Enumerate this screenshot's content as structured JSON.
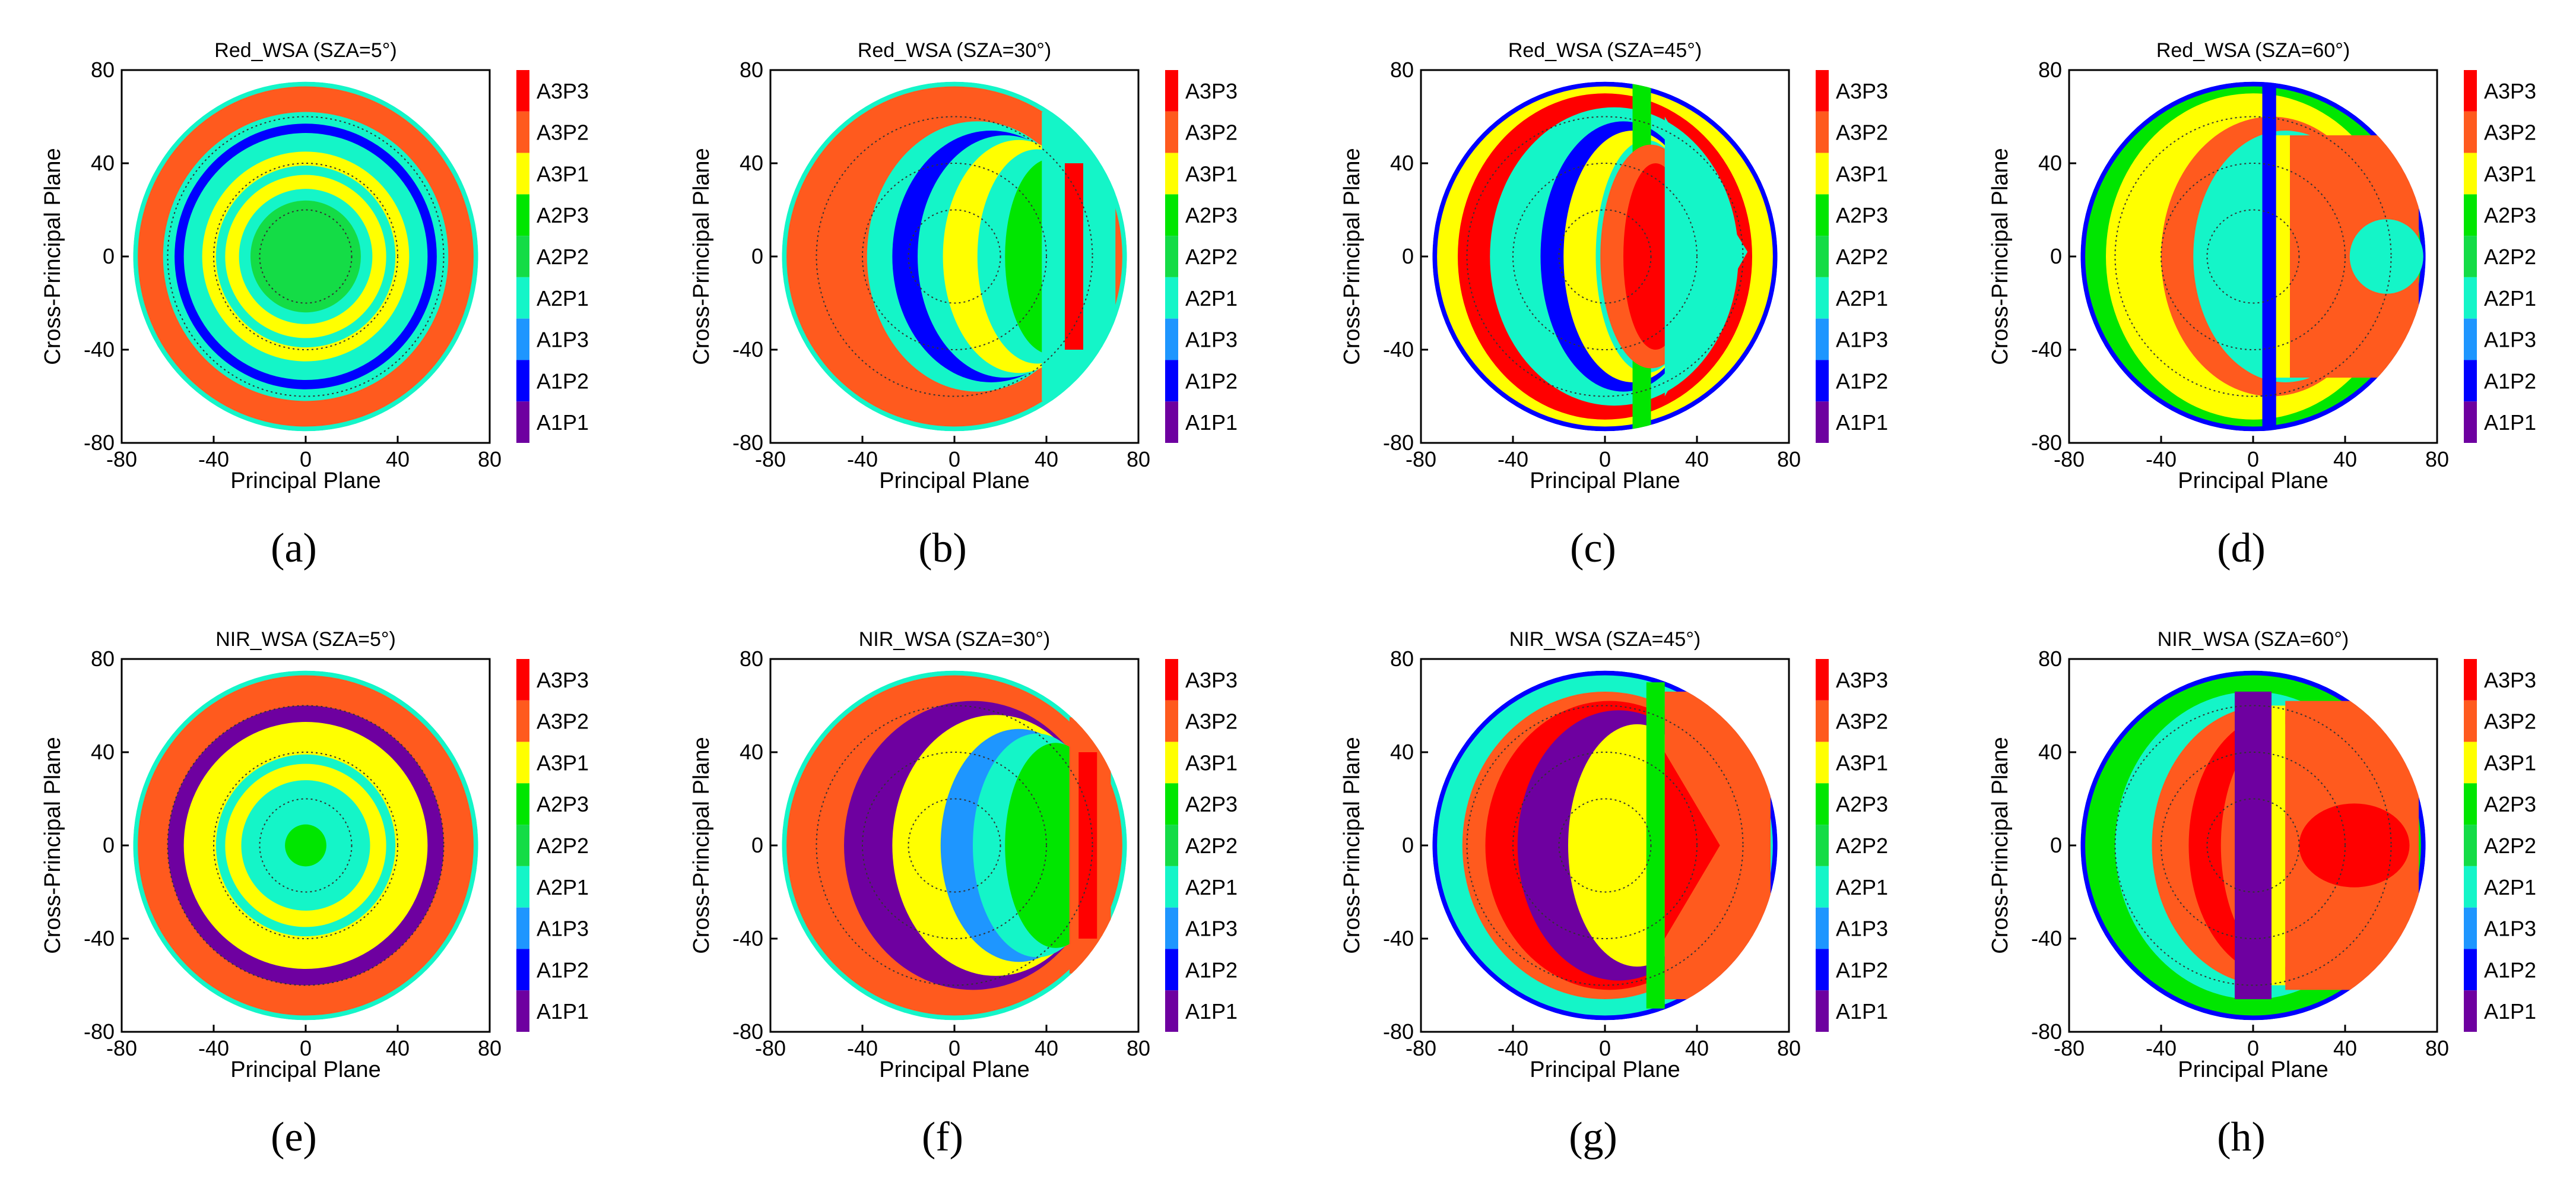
{
  "figure": {
    "panels": [
      {
        "id": "a",
        "title": "Red_WSA (SZA=5°)",
        "caption_letter": "a",
        "band": "Red",
        "sza": 5
      },
      {
        "id": "b",
        "title": "Red_WSA (SZA=30°)",
        "caption_letter": "b",
        "band": "Red",
        "sza": 30
      },
      {
        "id": "c",
        "title": "Red_WSA (SZA=45°)",
        "caption_letter": "c",
        "band": "Red",
        "sza": 45
      },
      {
        "id": "d",
        "title": "Red_WSA (SZA=60°)",
        "caption_letter": "d",
        "band": "Red",
        "sza": 60
      },
      {
        "id": "e",
        "title": "NIR_WSA (SZA=5°)",
        "caption_letter": "e",
        "band": "NIR",
        "sza": 5
      },
      {
        "id": "f",
        "title": "NIR_WSA (SZA=30°)",
        "caption_letter": "f",
        "band": "NIR",
        "sza": 30
      },
      {
        "id": "g",
        "title": "NIR_WSA (SZA=45°)",
        "caption_letter": "g",
        "band": "NIR",
        "sza": 45
      },
      {
        "id": "h",
        "title": "NIR_WSA (SZA=60°)",
        "caption_letter": "h",
        "band": "NIR",
        "sza": 60
      }
    ]
  },
  "chart_data": {
    "type": "heatmap",
    "xlabel": "Principal Plane",
    "ylabel": "Cross-Principal Plane",
    "xlim": [
      -80,
      80
    ],
    "ylim": [
      -80,
      80
    ],
    "xticks": [
      -80,
      -40,
      0,
      40,
      80
    ],
    "yticks": [
      -80,
      -40,
      0,
      40,
      80
    ],
    "categories": [
      "A3P3",
      "A3P2",
      "A3P1",
      "A2P3",
      "A2P2",
      "A2P1",
      "A1P3",
      "A1P2",
      "A1P1"
    ],
    "colors": {
      "A3P3": "#ff0000",
      "A3P2": "#ff5a1e",
      "A3P1": "#ffff00",
      "A2P3": "#00e600",
      "A2P2": "#14dc46",
      "A2P1": "#14f5c8",
      "A1P3": "#1e96ff",
      "A1P2": "#0000ff",
      "A1P1": "#6e00a0"
    },
    "domain_radius": 75,
    "grid_rings": [
      20,
      40,
      60
    ]
  }
}
